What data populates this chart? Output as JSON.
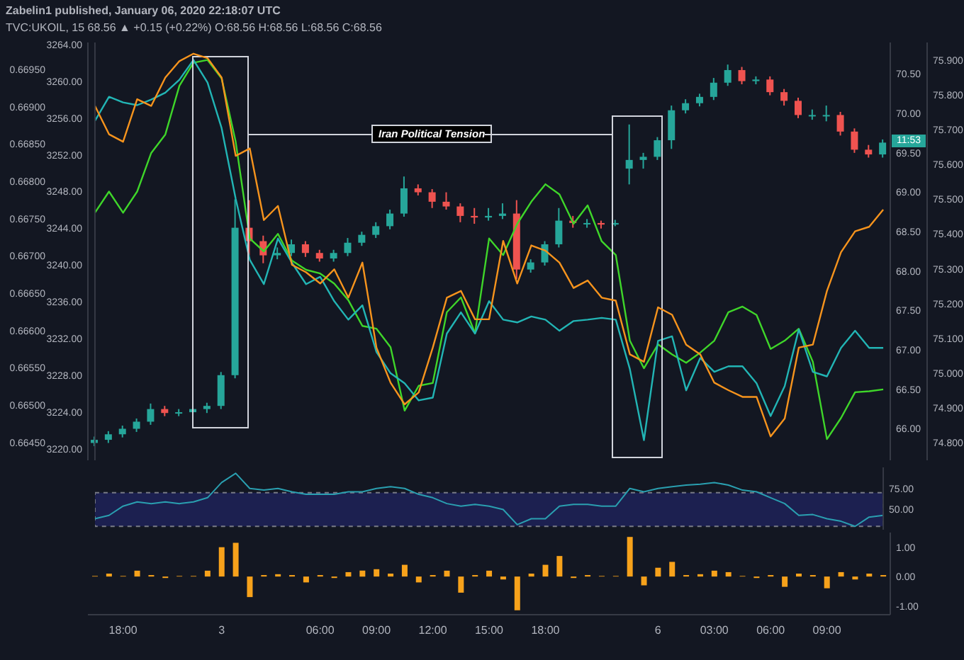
{
  "chart_data": [
    {
      "type": "candlestick",
      "title": "Zabelin1 published, January 06, 2020 22:18:07 UTC",
      "subtitle": "TVC:UKOIL, 15 68.56 ▲ +0.15 (+0.22%) O:68.56 H:68.56 L:68.56 C:68.56",
      "categories": [
        null,
        null,
        null,
        null,
        null,
        null,
        null,
        null,
        null,
        null,
        null,
        null,
        null,
        null,
        null,
        null,
        null,
        null,
        null,
        null,
        null,
        null,
        null,
        null,
        null,
        null,
        null,
        null,
        null,
        null,
        null,
        null,
        null,
        null,
        null,
        null,
        null,
        null,
        null,
        null,
        null,
        null,
        null,
        null,
        null,
        null,
        null,
        null,
        null,
        null,
        null,
        null,
        null,
        null,
        null,
        null,
        null
      ],
      "ohlc": [
        [
          65.82,
          65.9,
          65.78,
          65.86
        ],
        [
          65.86,
          65.97,
          65.82,
          65.93
        ],
        [
          65.93,
          66.04,
          65.89,
          66.0
        ],
        [
          66.0,
          66.13,
          65.96,
          66.09
        ],
        [
          66.09,
          66.32,
          66.05,
          66.25
        ],
        [
          66.25,
          66.29,
          66.16,
          66.2
        ],
        [
          66.2,
          66.25,
          66.16,
          66.21
        ],
        [
          66.21,
          66.29,
          66.17,
          66.25
        ],
        [
          66.25,
          66.33,
          66.2,
          66.29
        ],
        [
          66.29,
          66.72,
          66.25,
          66.68
        ],
        [
          66.68,
          68.91,
          66.64,
          68.55
        ],
        [
          68.55,
          68.9,
          68.2,
          68.38
        ],
        [
          68.38,
          68.45,
          68.1,
          68.2
        ],
        [
          68.2,
          68.3,
          68.15,
          68.23
        ],
        [
          68.23,
          68.4,
          68.19,
          68.34
        ],
        [
          68.34,
          68.38,
          68.18,
          68.23
        ],
        [
          68.23,
          68.27,
          68.12,
          68.16
        ],
        [
          68.16,
          68.27,
          68.12,
          68.23
        ],
        [
          68.23,
          68.42,
          68.19,
          68.36
        ],
        [
          68.36,
          68.5,
          68.32,
          68.46
        ],
        [
          68.46,
          68.62,
          68.42,
          68.57
        ],
        [
          68.57,
          68.78,
          68.53,
          68.73
        ],
        [
          68.73,
          69.2,
          68.69,
          69.05
        ],
        [
          69.05,
          69.1,
          68.96,
          69.0
        ],
        [
          69.0,
          69.04,
          68.8,
          68.88
        ],
        [
          68.88,
          69.0,
          68.78,
          68.82
        ],
        [
          68.82,
          68.86,
          68.62,
          68.7
        ],
        [
          68.7,
          68.8,
          68.6,
          68.68
        ],
        [
          68.68,
          68.8,
          68.64,
          68.7
        ],
        [
          68.7,
          68.86,
          68.66,
          68.73
        ],
        [
          68.73,
          68.9,
          67.9,
          68.02
        ],
        [
          68.02,
          68.15,
          67.98,
          68.11
        ],
        [
          68.11,
          68.38,
          68.07,
          68.34
        ],
        [
          68.34,
          68.8,
          68.3,
          68.64
        ],
        [
          68.64,
          68.7,
          68.55,
          68.61
        ],
        [
          68.61,
          68.66,
          68.55,
          68.61
        ],
        [
          68.61,
          68.64,
          68.54,
          68.59
        ],
        [
          68.59,
          68.65,
          68.57,
          68.61
        ],
        [
          69.3,
          69.86,
          69.1,
          69.41
        ],
        [
          69.41,
          69.5,
          69.3,
          69.45
        ],
        [
          69.45,
          69.7,
          69.41,
          69.66
        ],
        [
          69.66,
          70.1,
          69.55,
          70.04
        ],
        [
          70.04,
          70.18,
          70.0,
          70.13
        ],
        [
          70.13,
          70.25,
          70.09,
          70.21
        ],
        [
          70.21,
          70.45,
          70.17,
          70.39
        ],
        [
          70.39,
          70.62,
          70.35,
          70.55
        ],
        [
          70.55,
          70.59,
          70.37,
          70.41
        ],
        [
          70.41,
          70.47,
          70.37,
          70.43
        ],
        [
          70.43,
          70.47,
          70.23,
          70.27
        ],
        [
          70.27,
          70.31,
          70.1,
          70.16
        ],
        [
          70.16,
          70.2,
          69.94,
          69.98
        ],
        [
          69.98,
          70.05,
          69.92,
          69.98
        ],
        [
          69.98,
          70.1,
          69.9,
          69.98
        ],
        [
          69.98,
          70.02,
          69.72,
          69.77
        ],
        [
          69.77,
          69.81,
          69.5,
          69.54
        ],
        [
          69.54,
          69.6,
          69.44,
          69.48
        ],
        [
          69.48,
          69.67,
          69.44,
          69.63
        ]
      ],
      "ylim": [
        65.6,
        70.9
      ],
      "yticks": [
        {
          "value": 66,
          "label": "66.00"
        },
        {
          "value": 66.5,
          "label": "66.50"
        },
        {
          "value": 67,
          "label": "67.00"
        },
        {
          "value": 67.5,
          "label": "67.50"
        },
        {
          "value": 68,
          "label": "68.00"
        },
        {
          "value": 68.5,
          "label": "68.50"
        },
        {
          "value": 69,
          "label": "69.00"
        },
        {
          "value": 69.5,
          "label": "69.50"
        },
        {
          "value": 70,
          "label": "70.00"
        },
        {
          "value": 70.5,
          "label": "70.50"
        }
      ],
      "y2lim": [
        74.75,
        75.95
      ],
      "y2ticks": [
        {
          "value": 74.8,
          "label": "74.800"
        },
        {
          "value": 74.9,
          "label": "74.900"
        },
        {
          "value": 75,
          "label": "75.000"
        },
        {
          "value": 75.1,
          "label": "75.100"
        },
        {
          "value": 75.2,
          "label": "75.200"
        },
        {
          "value": 75.3,
          "label": "75.300"
        },
        {
          "value": 75.4,
          "label": "75.400"
        },
        {
          "value": 75.5,
          "label": "75.500"
        },
        {
          "value": 75.6,
          "label": "75.600"
        },
        {
          "value": 75.7,
          "label": "75.700"
        },
        {
          "value": 75.8,
          "label": "75.800"
        },
        {
          "value": 75.9,
          "label": "75.900"
        }
      ],
      "y3lim": [
        3218.8,
        3264.2
      ],
      "y3ticks": [
        {
          "value": 3220,
          "label": "3220.00"
        },
        {
          "value": 3224,
          "label": "3224.00"
        },
        {
          "value": 3228,
          "label": "3228.00"
        },
        {
          "value": 3232,
          "label": "3232.00"
        },
        {
          "value": 3236,
          "label": "3236.00"
        },
        {
          "value": 3240,
          "label": "3240.00"
        },
        {
          "value": 3244,
          "label": "3244.00"
        },
        {
          "value": 3248,
          "label": "3248.00"
        },
        {
          "value": 3252,
          "label": "3252.00"
        },
        {
          "value": 3256,
          "label": "3256.00"
        },
        {
          "value": 3260,
          "label": "3260.00"
        },
        {
          "value": 3264,
          "label": "3264.00"
        }
      ],
      "series": [
        {
          "type": "line",
          "color": "#3fd62a",
          "axis": "y3",
          "values": [
            3245.7,
            3248.0,
            3245.7,
            3248.0,
            3252.2,
            3254.2,
            3259.5,
            3262.0,
            3262.3,
            3260.3,
            3253.4,
            3242.9,
            3241.5,
            3243.4,
            3240.5,
            3239.5,
            3239.1,
            3238.0,
            3236.2,
            3233.4,
            3233.1,
            3231.1,
            3224.2,
            3226.9,
            3227.2,
            3234.9,
            3236.5,
            3232.6,
            3242.9,
            3241.1,
            3244.5,
            3246.9,
            3248.8,
            3247.7,
            3244.5,
            3246.5,
            3242.6,
            3241.1,
            3231.8,
            3228.8,
            3231.4,
            3230.3,
            3229.4,
            3230.5,
            3231.8,
            3234.9,
            3235.5,
            3234.6,
            3230.9,
            3231.8,
            3233.1,
            3229.5,
            3221.1,
            3223.4,
            3226.2,
            3226.3,
            3226.5
          ]
        },
        {
          "type": "line",
          "color": "#22b5b5",
          "axis": "y2",
          "values": [
            75.725,
            75.794,
            75.778,
            75.77,
            75.786,
            75.806,
            75.843,
            75.9,
            75.835,
            75.704,
            75.501,
            75.326,
            75.256,
            75.387,
            75.317,
            75.256,
            75.277,
            75.207,
            75.154,
            75.195,
            75.061,
            75.0,
            74.971,
            74.922,
            74.93,
            75.114,
            75.175,
            75.114,
            75.207,
            75.154,
            75.146,
            75.163,
            75.154,
            75.122,
            75.15,
            75.154,
            75.159,
            75.154,
            75.012,
            74.808,
            75.093,
            75.106,
            74.951,
            75.044,
            75.004,
            75.02,
            75.02,
            74.971,
            74.877,
            74.963,
            75.126,
            75.004,
            74.991,
            75.073,
            75.122,
            75.073,
            75.073
          ]
        }
      ],
      "annotations": [
        "Iran Political Tension",
        {
          "text": "11:53",
          "y": 69.65
        }
      ],
      "tick_labels": "y"
    },
    {
      "type": "line",
      "categories": [
        null,
        null,
        null,
        null,
        null,
        null,
        null,
        null,
        null,
        null,
        null,
        null,
        null,
        null,
        null,
        null,
        null,
        null,
        null,
        null,
        null,
        null,
        null,
        null,
        null,
        null,
        null,
        null,
        null,
        null,
        null,
        null,
        null,
        null,
        null,
        null,
        null,
        null,
        null,
        null,
        null,
        null,
        null,
        null,
        null,
        null,
        null,
        null,
        null,
        null,
        null,
        null,
        null,
        null,
        null,
        null,
        null
      ],
      "ylim": [
        0.66426,
        0.66986
      ],
      "yticks": [
        {
          "value": 0.6645,
          "label": "0.66450"
        },
        {
          "value": 0.665,
          "label": "0.66500"
        },
        {
          "value": 0.6655,
          "label": "0.66550"
        },
        {
          "value": 0.666,
          "label": "0.66600"
        },
        {
          "value": 0.6665,
          "label": "0.66650"
        },
        {
          "value": 0.667,
          "label": "0.66700"
        },
        {
          "value": 0.6675,
          "label": "0.66750"
        },
        {
          "value": 0.668,
          "label": "0.66800"
        },
        {
          "value": 0.6685,
          "label": "0.66850"
        },
        {
          "value": 0.669,
          "label": "0.66900"
        },
        {
          "value": 0.6695,
          "label": "0.66950"
        }
      ],
      "color": "#f7941d",
      "values": [
        0.66901,
        0.66863,
        0.66853,
        0.6691,
        0.66901,
        0.66939,
        0.66961,
        0.66971,
        0.66965,
        0.66939,
        0.66834,
        0.66844,
        0.66748,
        0.66767,
        0.66688,
        0.66678,
        0.66663,
        0.66682,
        0.66644,
        0.66691,
        0.66577,
        0.6653,
        0.66501,
        0.66517,
        0.66577,
        0.66644,
        0.66653,
        0.66615,
        0.66615,
        0.6672,
        0.66663,
        0.66714,
        0.66707,
        0.66691,
        0.66657,
        0.66667,
        0.66644,
        0.6664,
        0.66568,
        0.66558,
        0.66631,
        0.66621,
        0.66581,
        0.66568,
        0.6653,
        0.6652,
        0.66511,
        0.66511,
        0.66458,
        0.66482,
        0.66577,
        0.66581,
        0.66653,
        0.66705,
        0.66733,
        0.66739,
        0.66762
      ],
      "tick_labels": "y"
    },
    {
      "type": "line",
      "categories": [
        null,
        null,
        null,
        null,
        null,
        null,
        null,
        null,
        null,
        null,
        null,
        null,
        null,
        null,
        null,
        null,
        null,
        null,
        null,
        null,
        null,
        null,
        null,
        null,
        null,
        null,
        null,
        null,
        null,
        null,
        null,
        null,
        null,
        null,
        null,
        null,
        null,
        null,
        null,
        null,
        null,
        null,
        null,
        null,
        null,
        null,
        null,
        null,
        null,
        null,
        null,
        null,
        null,
        null,
        null,
        null,
        null
      ],
      "color": "#2a9fb0",
      "values": [
        39,
        43,
        54,
        59,
        57,
        59,
        57,
        59,
        64,
        82,
        93,
        75,
        73,
        75,
        71,
        68,
        68,
        68,
        71,
        71,
        75,
        77,
        75,
        68,
        64,
        57,
        54,
        56,
        54,
        50,
        32,
        39,
        39,
        54,
        56,
        56,
        54,
        54,
        75,
        71,
        75,
        77,
        79,
        80,
        82,
        79,
        73,
        71,
        64,
        57,
        43,
        44,
        39,
        36,
        30,
        41,
        43
      ],
      "ylim": [
        26,
        100
      ],
      "yticks": [
        {
          "value": 50,
          "label": "50.00"
        },
        {
          "value": 75,
          "label": "75.00"
        }
      ],
      "bands": [
        {
          "axis": "y",
          "from": 30,
          "to": 70,
          "color": "#1c2050"
        }
      ],
      "tick_labels": "y"
    },
    {
      "type": "bar",
      "categories": [
        null,
        null,
        "18:00",
        null,
        null,
        null,
        null,
        null,
        null,
        "3",
        null,
        null,
        null,
        null,
        null,
        null,
        "06:00",
        null,
        null,
        null,
        "09:00",
        null,
        null,
        null,
        "12:00",
        null,
        null,
        null,
        "15:00",
        null,
        null,
        null,
        "18:00",
        null,
        null,
        null,
        null,
        null,
        null,
        null,
        "6",
        null,
        null,
        null,
        "03:00",
        null,
        null,
        null,
        "06:00",
        null,
        null,
        null,
        "09:00",
        null,
        null,
        null,
        null
      ],
      "color": "#f7a21b",
      "values": [
        0.02,
        0.1,
        0.02,
        0.2,
        0.05,
        -0.05,
        0.02,
        0.02,
        0.2,
        1.0,
        1.15,
        -0.7,
        0.05,
        0.08,
        0.05,
        -0.2,
        0.05,
        -0.05,
        0.15,
        0.2,
        0.25,
        0.1,
        0.4,
        -0.2,
        0.05,
        0.2,
        -0.55,
        0.05,
        0.2,
        -0.1,
        -1.15,
        0.1,
        0.4,
        0.7,
        -0.05,
        0.05,
        0.02,
        0.02,
        1.35,
        -0.3,
        0.3,
        0.5,
        0.05,
        0.08,
        0.2,
        0.15,
        0.02,
        -0.05,
        0.05,
        -0.35,
        0.1,
        0.05,
        -0.4,
        0.15,
        -0.1,
        0.1,
        0.05
      ],
      "ylim": [
        -1.3,
        1.5
      ],
      "yticks": [
        {
          "value": -1,
          "label": "-1.00"
        },
        {
          "value": 0,
          "label": "0.00"
        },
        {
          "value": 1,
          "label": "1.00"
        }
      ]
    }
  ]
}
